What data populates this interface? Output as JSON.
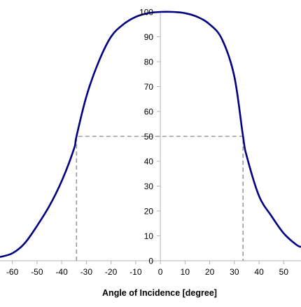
{
  "chart_data": {
    "type": "line",
    "title": "",
    "xlabel": "Angle of Incidence [degree]",
    "ylabel": "",
    "xlim": [
      -65,
      57
    ],
    "ylim": [
      0,
      100
    ],
    "x_ticks": [
      -60,
      -50,
      -40,
      -30,
      -20,
      -10,
      0,
      10,
      20,
      30,
      40,
      50
    ],
    "y_ticks": [
      0,
      10,
      20,
      30,
      40,
      50,
      60,
      70,
      80,
      90,
      100
    ],
    "grid": false,
    "legend": "none",
    "series": [
      {
        "color": "#000080",
        "points": [
          [
            -65,
            1.5
          ],
          [
            -60,
            3
          ],
          [
            -55,
            7
          ],
          [
            -50,
            14
          ],
          [
            -45,
            22
          ],
          [
            -40,
            32
          ],
          [
            -35,
            45
          ],
          [
            -34,
            50
          ],
          [
            -30,
            66
          ],
          [
            -25,
            80
          ],
          [
            -20,
            90
          ],
          [
            -15,
            95
          ],
          [
            -10,
            98
          ],
          [
            -5,
            99.5
          ],
          [
            0,
            100
          ],
          [
            5,
            100
          ],
          [
            10,
            99.5
          ],
          [
            15,
            98
          ],
          [
            20,
            95
          ],
          [
            25,
            89
          ],
          [
            30,
            74
          ],
          [
            33.5,
            50
          ],
          [
            35,
            42
          ],
          [
            40,
            26
          ],
          [
            45,
            18
          ],
          [
            50,
            11
          ],
          [
            55,
            6.5
          ],
          [
            57,
            5.5
          ]
        ]
      }
    ],
    "reference_lines": [
      {
        "color": "#999999",
        "style": "dashed",
        "points": [
          [
            -34,
            0
          ],
          [
            -34,
            50
          ],
          [
            33.5,
            50
          ],
          [
            33.5,
            0
          ]
        ]
      }
    ]
  }
}
